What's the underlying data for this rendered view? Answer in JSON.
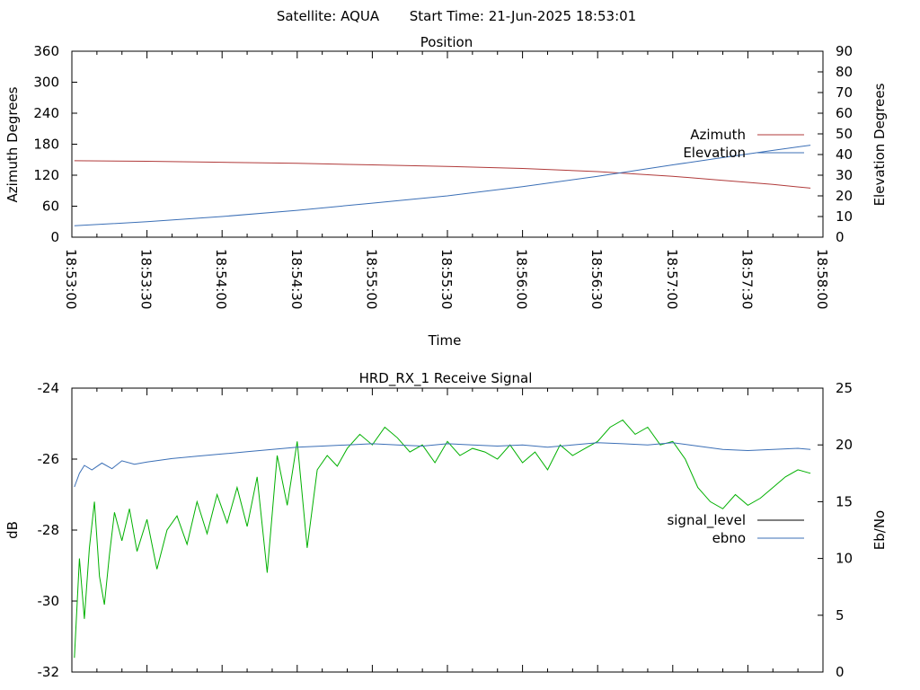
{
  "header": {
    "satellite": "Satellite: AQUA",
    "start_time": "Start Time: 21-Jun-2025 18:53:01"
  },
  "colors": {
    "azimuth": "#b03a3a",
    "elevation": "#3b6fb6",
    "signal_level": "#00b000",
    "ebno": "#3b6fb6",
    "signal_legend": "#000000"
  },
  "chart_data": [
    {
      "type": "line",
      "title": "Position",
      "xlabel": "Time",
      "ylabel": "Azimuth Degrees",
      "y2label": "Elevation Degrees",
      "xlim": [
        "18:53:00",
        "18:58:00"
      ],
      "ylim": [
        0,
        360
      ],
      "y2lim": [
        0,
        90
      ],
      "yticks": [
        "0",
        "60",
        "120",
        "180",
        "240",
        "300",
        "360"
      ],
      "y2ticks": [
        "0",
        "10",
        "20",
        "30",
        "40",
        "50",
        "60",
        "70",
        "80",
        "90"
      ],
      "xticks": [
        "18:53:00",
        "18:53:30",
        "18:54:00",
        "18:54:30",
        "18:55:00",
        "18:55:30",
        "18:56:00",
        "18:56:30",
        "18:57:00",
        "18:57:30",
        "18:58:00"
      ],
      "legend_position": "right",
      "series": [
        {
          "name": "Azimuth",
          "axis": "y",
          "x": [
            "18:53:01",
            "18:53:30",
            "18:54:00",
            "18:54:30",
            "18:55:00",
            "18:55:30",
            "18:56:00",
            "18:56:30",
            "18:57:00",
            "18:57:20",
            "18:57:40",
            "18:57:55"
          ],
          "values": [
            148,
            147,
            145,
            143,
            140,
            137,
            133,
            127,
            118,
            110,
            102,
            95
          ]
        },
        {
          "name": "Elevation",
          "axis": "y2",
          "x": [
            "18:53:01",
            "18:53:30",
            "18:54:00",
            "18:54:30",
            "18:55:00",
            "18:55:30",
            "18:56:00",
            "18:56:30",
            "18:57:00",
            "18:57:20",
            "18:57:40",
            "18:57:55"
          ],
          "values": [
            5.5,
            7.5,
            10,
            13,
            16.5,
            20,
            24.5,
            29.5,
            35,
            38.5,
            42,
            44.5
          ]
        }
      ]
    },
    {
      "type": "line",
      "title": "HRD_RX_1 Receive Signal",
      "ylabel": "dB",
      "y2label": "Eb/No",
      "xlim": [
        "18:53:00",
        "18:58:00"
      ],
      "ylim": [
        -32,
        -24
      ],
      "y2lim": [
        0,
        25
      ],
      "yticks": [
        "-32",
        "-30",
        "-28",
        "-26",
        "-24"
      ],
      "y2ticks": [
        "0",
        "5",
        "10",
        "15",
        "20",
        "25"
      ],
      "legend_position": "right",
      "series": [
        {
          "name": "signal_level",
          "axis": "y",
          "x": [
            "18:53:01",
            "18:53:03",
            "18:53:05",
            "18:53:07",
            "18:53:09",
            "18:53:11",
            "18:53:13",
            "18:53:15",
            "18:53:17",
            "18:53:20",
            "18:53:23",
            "18:53:26",
            "18:53:30",
            "18:53:34",
            "18:53:38",
            "18:53:42",
            "18:53:46",
            "18:53:50",
            "18:53:54",
            "18:53:58",
            "18:54:02",
            "18:54:06",
            "18:54:10",
            "18:54:14",
            "18:54:18",
            "18:54:22",
            "18:54:26",
            "18:54:30",
            "18:54:34",
            "18:54:38",
            "18:54:42",
            "18:54:46",
            "18:54:50",
            "18:54:55",
            "18:55:00",
            "18:55:05",
            "18:55:10",
            "18:55:15",
            "18:55:20",
            "18:55:25",
            "18:55:30",
            "18:55:35",
            "18:55:40",
            "18:55:45",
            "18:55:50",
            "18:55:55",
            "18:56:00",
            "18:56:05",
            "18:56:10",
            "18:56:15",
            "18:56:20",
            "18:56:25",
            "18:56:30",
            "18:56:35",
            "18:56:40",
            "18:56:45",
            "18:56:50",
            "18:56:55",
            "18:57:00",
            "18:57:05",
            "18:57:10",
            "18:57:15",
            "18:57:20",
            "18:57:25",
            "18:57:30",
            "18:57:35",
            "18:57:40",
            "18:57:45",
            "18:57:50",
            "18:57:55"
          ],
          "values": [
            -31.6,
            -28.8,
            -30.5,
            -28.5,
            -27.2,
            -29.3,
            -30.1,
            -28.7,
            -27.5,
            -28.3,
            -27.4,
            -28.6,
            -27.7,
            -29.1,
            -28.0,
            -27.6,
            -28.4,
            -27.2,
            -28.1,
            -27.0,
            -27.8,
            -26.8,
            -27.9,
            -26.5,
            -29.2,
            -25.9,
            -27.3,
            -25.5,
            -28.5,
            -26.3,
            -25.9,
            -26.2,
            -25.7,
            -25.3,
            -25.6,
            -25.1,
            -25.4,
            -25.8,
            -25.6,
            -26.1,
            -25.5,
            -25.9,
            -25.7,
            -25.8,
            -26.0,
            -25.6,
            -26.1,
            -25.8,
            -26.3,
            -25.6,
            -25.9,
            -25.7,
            -25.5,
            -25.1,
            -24.9,
            -25.3,
            -25.1,
            -25.6,
            -25.5,
            -26.0,
            -26.8,
            -27.2,
            -27.4,
            -27.0,
            -27.3,
            -27.1,
            -26.8,
            -26.5,
            -26.3,
            -26.4
          ]
        },
        {
          "name": "ebno",
          "axis": "y2",
          "x": [
            "18:53:01",
            "18:53:03",
            "18:53:05",
            "18:53:08",
            "18:53:12",
            "18:53:16",
            "18:53:20",
            "18:53:25",
            "18:53:30",
            "18:53:40",
            "18:53:50",
            "18:54:00",
            "18:54:10",
            "18:54:20",
            "18:54:30",
            "18:54:40",
            "18:54:50",
            "18:55:00",
            "18:55:10",
            "18:55:20",
            "18:55:30",
            "18:55:40",
            "18:55:50",
            "18:56:00",
            "18:56:10",
            "18:56:20",
            "18:56:30",
            "18:56:40",
            "18:56:50",
            "18:57:00",
            "18:57:10",
            "18:57:20",
            "18:57:30",
            "18:57:40",
            "18:57:50",
            "18:57:55"
          ],
          "values": [
            16.3,
            17.5,
            18.2,
            17.8,
            18.4,
            17.9,
            18.6,
            18.3,
            18.5,
            18.8,
            19.0,
            19.2,
            19.4,
            19.6,
            19.8,
            19.9,
            20.0,
            20.1,
            20.0,
            19.9,
            20.1,
            20.0,
            19.9,
            20.0,
            19.8,
            20.0,
            20.2,
            20.1,
            20.0,
            20.2,
            19.9,
            19.6,
            19.5,
            19.6,
            19.7,
            19.6
          ]
        }
      ]
    }
  ]
}
